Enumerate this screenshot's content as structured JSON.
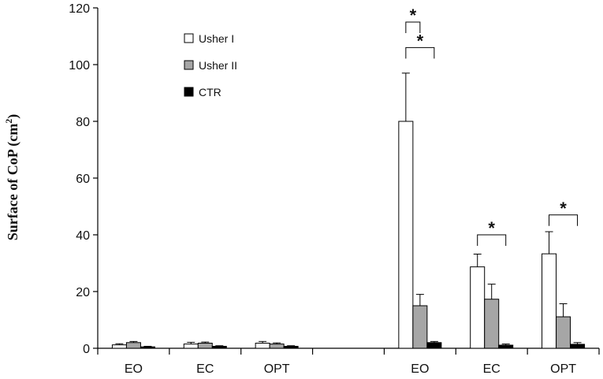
{
  "chart_data": {
    "type": "bar",
    "ylabel": "Surface of CoP (cm²)",
    "ylabel_main": "Surface of CoP (cm",
    "ylabel_sup": "2",
    "ylabel_tail": ")",
    "ylim": [
      0,
      120
    ],
    "yticks": [
      0,
      20,
      40,
      60,
      80,
      100,
      120
    ],
    "grid": false,
    "legend_position": "top-left",
    "categories": [
      "EO",
      "EC",
      "OPT",
      "",
      "EO",
      "EC",
      "OPT"
    ],
    "series": [
      {
        "name": "Usher I",
        "color": "#ffffff",
        "values": [
          1.2,
          1.5,
          1.8,
          null,
          80,
          28.7,
          33.3
        ],
        "errors": [
          0.4,
          0.6,
          0.6,
          null,
          17,
          4.5,
          7.8
        ]
      },
      {
        "name": "Usher II",
        "color": "#a6a6a6",
        "values": [
          2.0,
          1.8,
          1.5,
          null,
          15,
          17.3,
          11.1
        ],
        "errors": [
          0.4,
          0.4,
          0.4,
          null,
          4,
          5.3,
          4.6
        ]
      },
      {
        "name": "CTR",
        "color": "#000000",
        "values": [
          0.5,
          0.7,
          0.7,
          null,
          2.0,
          1.1,
          1.4
        ],
        "errors": [
          0.2,
          0.2,
          0.2,
          null,
          0.4,
          0.4,
          0.6
        ]
      }
    ],
    "significance": [
      {
        "label": "*",
        "category": 4,
        "from_series": 0,
        "to_series": 1,
        "y": 115
      },
      {
        "label": "*",
        "category": 4,
        "from_series": 0,
        "to_series": 2,
        "y": 106
      },
      {
        "label": "*",
        "category": 5,
        "from_series": 0,
        "to_series": 2,
        "y": 40
      },
      {
        "label": "*",
        "category": 6,
        "from_series": 0,
        "to_series": 2,
        "y": 47
      }
    ]
  }
}
